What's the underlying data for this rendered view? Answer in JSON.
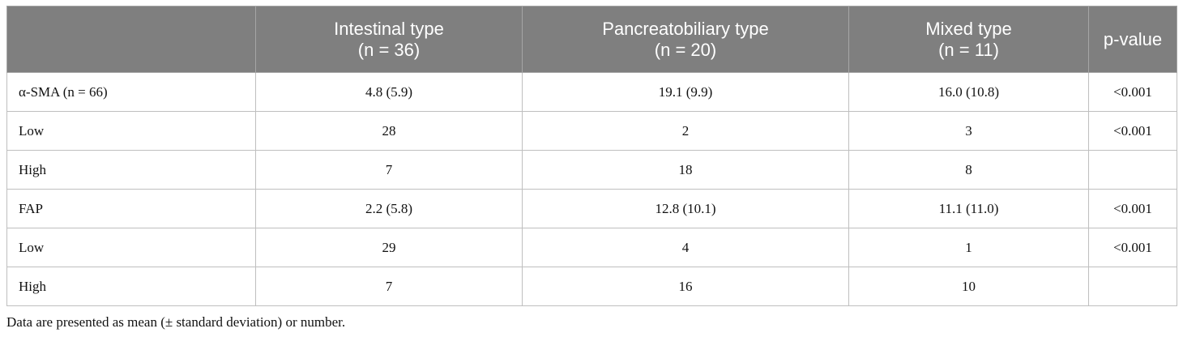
{
  "table": {
    "columns": [
      {
        "title": "",
        "subtitle": ""
      },
      {
        "title": "Intestinal type",
        "subtitle": "(n = 36)"
      },
      {
        "title": "Pancreatobiliary type",
        "subtitle": "(n = 20)"
      },
      {
        "title": "Mixed type",
        "subtitle": "(n = 11)"
      },
      {
        "title": "p-value",
        "subtitle": ""
      }
    ],
    "rows": [
      [
        "α-SMA (n = 66)",
        "4.8 (5.9)",
        "19.1 (9.9)",
        "16.0 (10.8)",
        "<0.001"
      ],
      [
        "Low",
        "28",
        "2",
        "3",
        "<0.001"
      ],
      [
        "High",
        "7",
        "18",
        "8",
        ""
      ],
      [
        "FAP",
        "2.2 (5.8)",
        "12.8 (10.1)",
        "11.1 (11.0)",
        "<0.001"
      ],
      [
        "Low",
        "29",
        "4",
        "1",
        "<0.001"
      ],
      [
        "High",
        "7",
        "16",
        "10",
        ""
      ]
    ]
  },
  "footnote": "Data are presented as mean (± standard deviation) or number."
}
